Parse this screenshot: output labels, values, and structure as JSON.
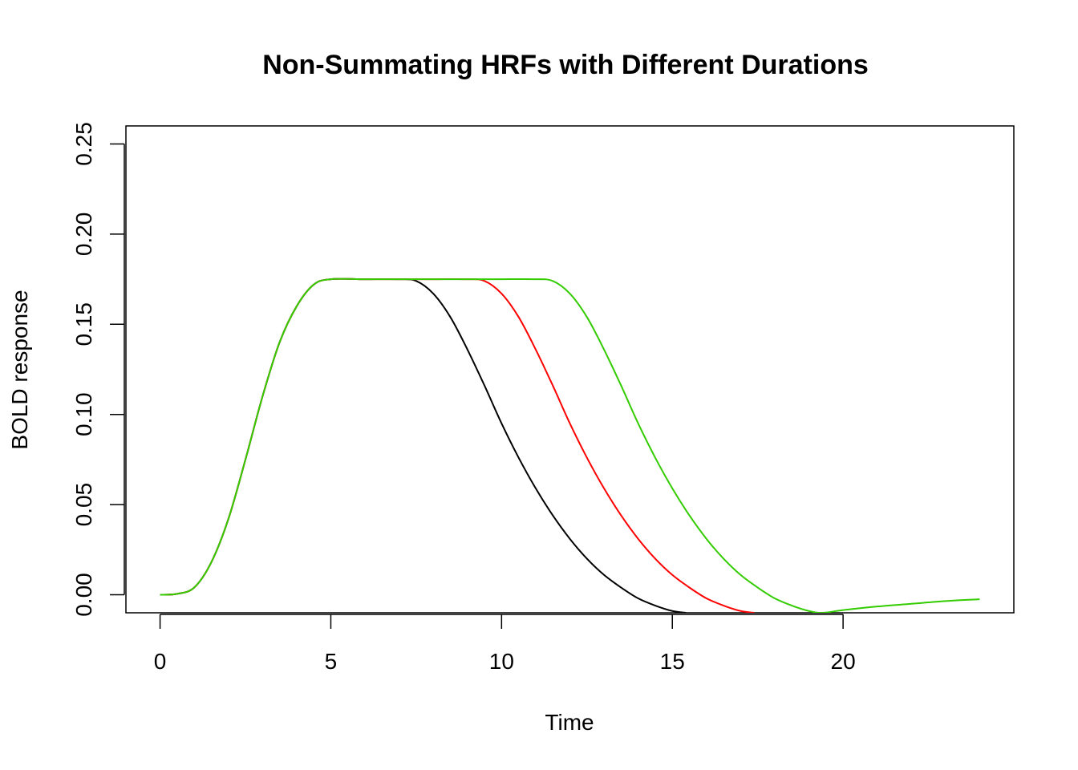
{
  "chart_data": {
    "type": "line",
    "title": "Non-Summating HRFs with Different Durations",
    "xlabel": "Time",
    "ylabel": "BOLD response",
    "xlim": [
      -1,
      25
    ],
    "ylim": [
      -0.01,
      0.26
    ],
    "x_ticks": [
      "0",
      "5",
      "10",
      "15",
      "20"
    ],
    "x_tick_values": [
      0,
      5,
      10,
      15,
      20
    ],
    "y_ticks": [
      "0.00",
      "0.05",
      "0.10",
      "0.15",
      "0.20",
      "0.25"
    ],
    "y_tick_values": [
      0.0,
      0.05,
      0.1,
      0.15,
      0.2,
      0.25
    ],
    "grid": false,
    "legend": "none",
    "series": [
      {
        "color": "#000000",
        "x": [
          0,
          0.5,
          1,
          1.5,
          2,
          2.5,
          3,
          3.5,
          4,
          4.5,
          5,
          6,
          7,
          7.5,
          8,
          8.5,
          9,
          9.5,
          10,
          10.5,
          11,
          11.5,
          12,
          12.5,
          13,
          13.5,
          14,
          14.5,
          15,
          15.4
        ],
        "y": [
          0,
          0.0005,
          0.004,
          0.018,
          0.042,
          0.075,
          0.11,
          0.14,
          0.16,
          0.172,
          0.175,
          0.175,
          0.175,
          0.174,
          0.167,
          0.154,
          0.136,
          0.116,
          0.095,
          0.076,
          0.059,
          0.044,
          0.031,
          0.02,
          0.011,
          0.004,
          -0.002,
          -0.006,
          -0.009,
          -0.01
        ]
      },
      {
        "color": "#ff0000",
        "x": [
          0,
          0.5,
          1,
          1.5,
          2,
          2.5,
          3,
          3.5,
          4,
          4.5,
          5,
          6,
          7,
          8,
          9,
          9.5,
          10,
          10.5,
          11,
          11.5,
          12,
          12.5,
          13,
          13.5,
          14,
          14.5,
          15,
          15.5,
          16,
          16.5,
          17,
          17.4
        ],
        "y": [
          0,
          0.0005,
          0.004,
          0.018,
          0.042,
          0.075,
          0.11,
          0.14,
          0.16,
          0.172,
          0.175,
          0.175,
          0.175,
          0.175,
          0.175,
          0.174,
          0.167,
          0.154,
          0.136,
          0.116,
          0.095,
          0.076,
          0.059,
          0.044,
          0.031,
          0.02,
          0.011,
          0.004,
          -0.002,
          -0.006,
          -0.009,
          -0.01
        ]
      },
      {
        "color": "#33cc00",
        "x": [
          0,
          0.5,
          1,
          1.5,
          2,
          2.5,
          3,
          3.5,
          4,
          4.5,
          5,
          6,
          7,
          8,
          9,
          10,
          11,
          11.5,
          12,
          12.5,
          13,
          13.5,
          14,
          14.5,
          15,
          15.5,
          16,
          16.5,
          17,
          17.5,
          18,
          18.5,
          19,
          19.4,
          20,
          21,
          22,
          23,
          24
        ],
        "y": [
          0,
          0.0005,
          0.004,
          0.018,
          0.042,
          0.075,
          0.11,
          0.14,
          0.16,
          0.172,
          0.175,
          0.175,
          0.175,
          0.175,
          0.175,
          0.175,
          0.175,
          0.174,
          0.167,
          0.154,
          0.136,
          0.116,
          0.095,
          0.076,
          0.059,
          0.044,
          0.031,
          0.02,
          0.011,
          0.004,
          -0.002,
          -0.006,
          -0.009,
          -0.01,
          -0.0085,
          -0.0065,
          -0.005,
          -0.0035,
          -0.0025
        ]
      }
    ]
  }
}
